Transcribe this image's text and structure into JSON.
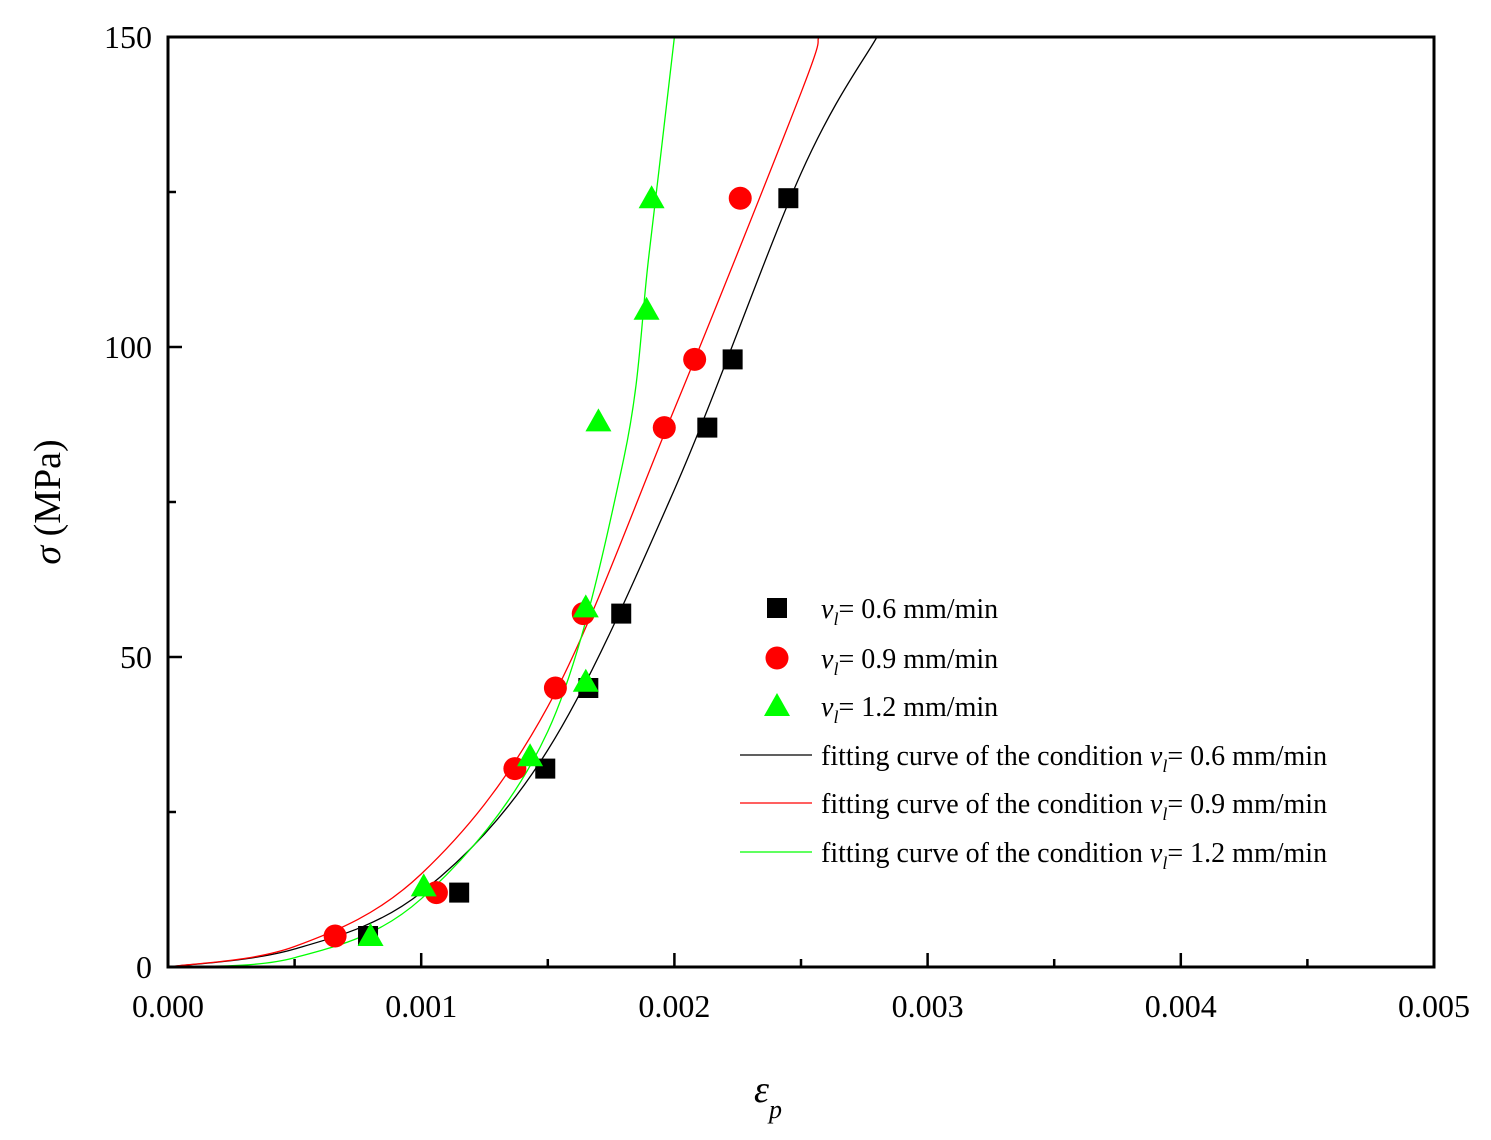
{
  "chart_data": {
    "type": "scatter",
    "title": "",
    "xlabel": "ε",
    "xlabel_sub": "p",
    "ylabel_symbol": "σ",
    "ylabel_unit": "(MPa)",
    "xlim": [
      0,
      0.005
    ],
    "ylim": [
      0,
      150
    ],
    "x_ticks": [
      0,
      0.001,
      0.002,
      0.003,
      0.004,
      0.005
    ],
    "x_tick_labels": [
      "0.000",
      "0.001",
      "0.002",
      "0.003",
      "0.004",
      "0.005"
    ],
    "y_ticks": [
      0,
      50,
      100,
      150
    ],
    "y_tick_labels": [
      "0",
      "50",
      "100",
      "150"
    ],
    "x_minor_ticks": [
      0.0005,
      0.0015,
      0.0025,
      0.0035,
      0.0045
    ],
    "y_minor_ticks": [
      25,
      75,
      125
    ],
    "grid": false,
    "legend_position": "center-right",
    "series": [
      {
        "name": "v_l = 0.6 mm/min",
        "marker": "square",
        "color": "#000000",
        "x": [
          0.00079,
          0.00115,
          0.00149,
          0.00166,
          0.00179,
          0.00213,
          0.00223,
          0.00245
        ],
        "y": [
          5,
          12,
          32,
          45,
          57,
          87,
          98,
          124
        ]
      },
      {
        "name": "v_l = 0.9 mm/min",
        "marker": "circle",
        "color": "#ff0000",
        "x": [
          0.00066,
          0.00106,
          0.00137,
          0.00153,
          0.00164,
          0.00196,
          0.00208,
          0.00226
        ],
        "y": [
          5,
          12,
          32,
          45,
          57,
          87,
          98,
          124
        ]
      },
      {
        "name": "v_l = 1.2 mm/min",
        "marker": "triangle",
        "color": "#00ff00",
        "x": [
          0.0008,
          0.00101,
          0.00143,
          0.00165,
          0.00165,
          0.0017,
          0.00189,
          0.00191
        ],
        "y": [
          5,
          13,
          34,
          46,
          58,
          88,
          106,
          124
        ]
      }
    ],
    "fit_curves": [
      {
        "name": "fitting curve of the condition v_l = 0.6 mm/min",
        "color": "#000000",
        "x": [
          0,
          0.0005,
          0.001,
          0.0015,
          0.002,
          0.0025,
          0.0028
        ],
        "y": [
          0,
          2.9,
          12,
          35,
          77,
          128,
          150
        ]
      },
      {
        "name": "fitting curve of the condition v_l = 0.9 mm/min",
        "color": "#ff0000",
        "x": [
          0,
          0.0005,
          0.001,
          0.0015,
          0.002,
          0.0025,
          0.00257
        ],
        "y": [
          0,
          3.3,
          15,
          42,
          90,
          141,
          150
        ]
      },
      {
        "name": "fitting curve of the condition v_l = 1.2 mm/min",
        "color": "#00ff00",
        "x": [
          0,
          0.0005,
          0.001,
          0.0015,
          0.0018,
          0.0019,
          0.002
        ],
        "y": [
          0,
          1.5,
          11,
          38,
          82,
          115,
          150
        ]
      }
    ]
  },
  "legend": {
    "entries": [
      {
        "var": "v",
        "sub": "l",
        "text": "= 0.6 mm/min",
        "prefix": ""
      },
      {
        "var": "v",
        "sub": "l",
        "text": "= 0.9 mm/min",
        "prefix": ""
      },
      {
        "var": "v",
        "sub": "l",
        "text": "= 1.2 mm/min",
        "prefix": ""
      },
      {
        "var": "v",
        "sub": "l",
        "text": "= 0.6 mm/min",
        "prefix": "fitting curve of the condition "
      },
      {
        "var": "v",
        "sub": "l",
        "text": "= 0.9 mm/min",
        "prefix": "fitting curve of the condition "
      },
      {
        "var": "v",
        "sub": "l",
        "text": "= 1.2 mm/min",
        "prefix": "fitting curve of the condition "
      }
    ]
  }
}
